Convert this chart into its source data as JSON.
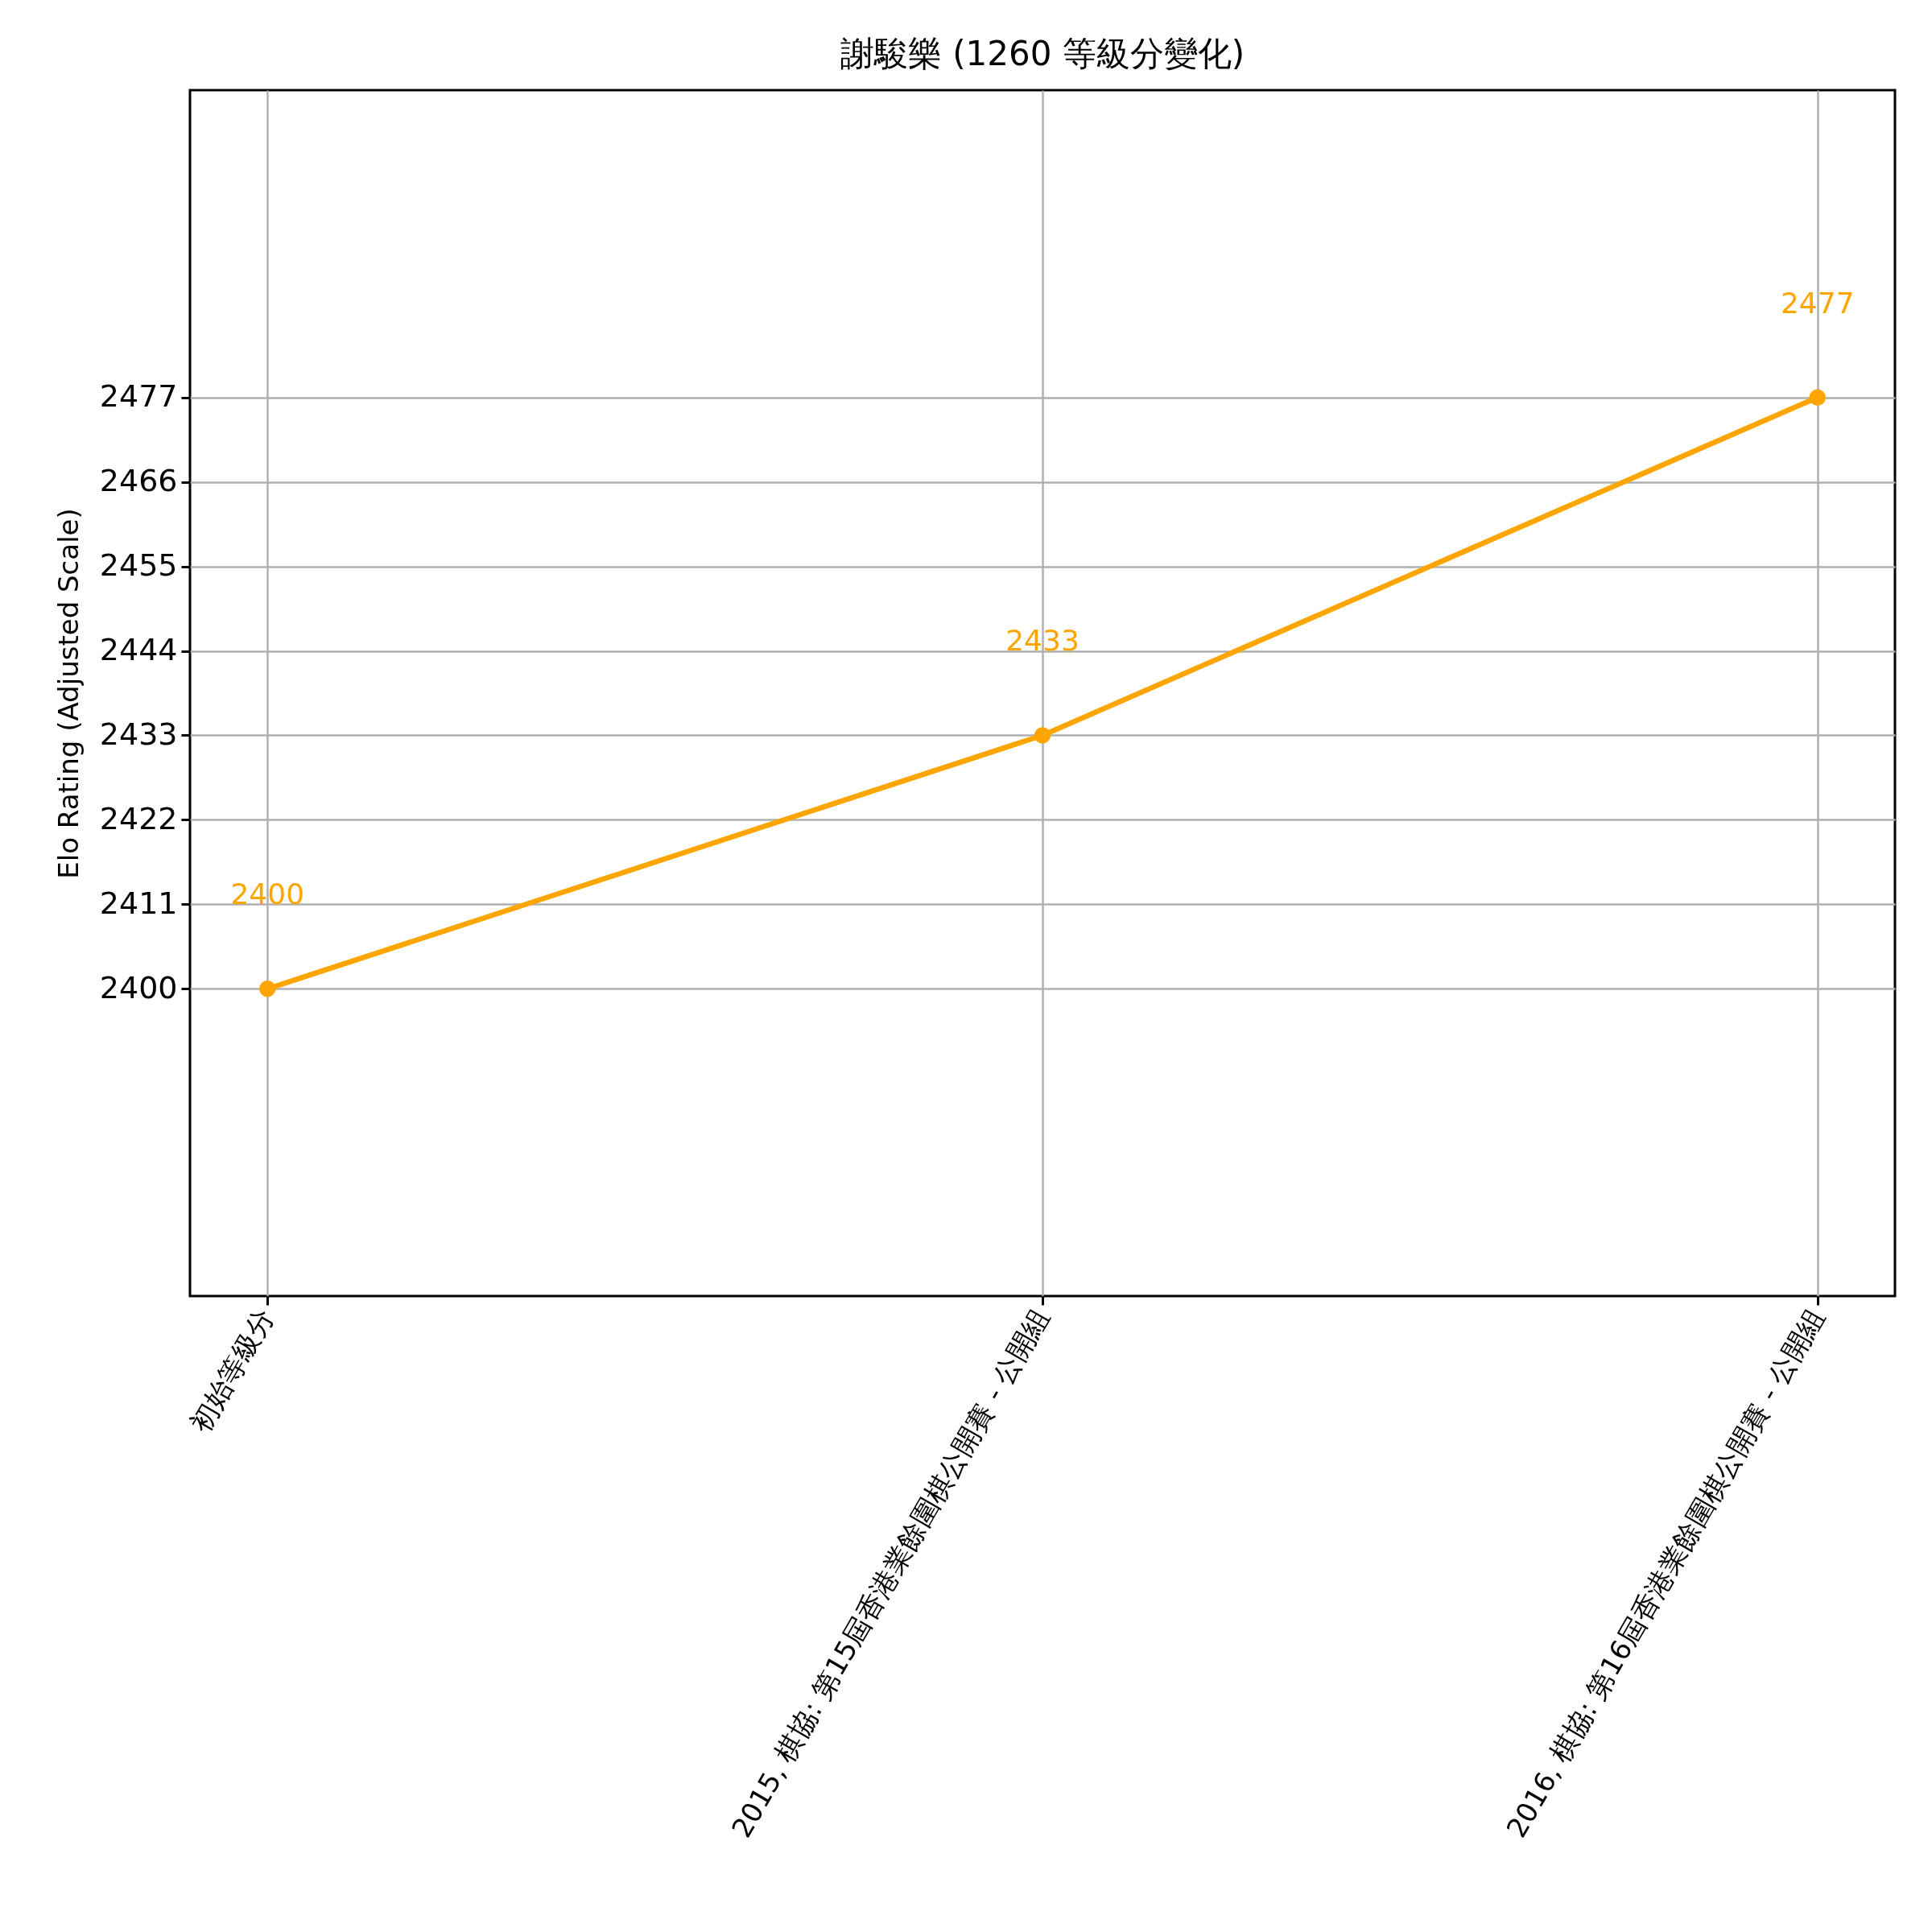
{
  "chart_data": {
    "type": "line",
    "title": "謝駿樂 (1260 等級分變化)",
    "ylabel": "Elo Rating (Adjusted Scale)",
    "categories": [
      "初始等級分",
      "2015, 棋協: 第15屆香港業餘圍棋公開賽 - 公開組",
      "2016, 棋協: 第16屆香港業餘圍棋公開賽 - 公開組"
    ],
    "series": [
      {
        "color": "#ffa500",
        "values": [
          2400,
          2433,
          2477
        ]
      }
    ],
    "ylim": [
      2360,
      2517
    ],
    "yticks": [
      2400,
      2411,
      2422,
      2433,
      2444,
      2455,
      2466,
      2477
    ],
    "grid": true,
    "marker": "circle",
    "line_style": "solid",
    "data_labels": true
  }
}
